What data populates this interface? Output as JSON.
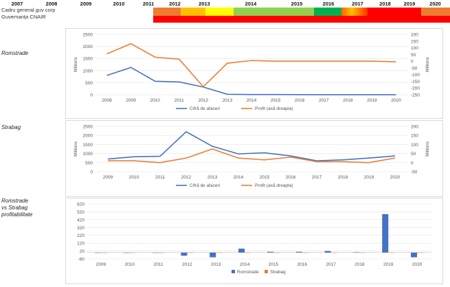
{
  "header": {
    "years": [
      "2007",
      "2008",
      "2009",
      "2010",
      "2011",
      "2012",
      "2013",
      "2014",
      "2015",
      "2016",
      "2017",
      "2018",
      "2019",
      "2020"
    ],
    "governance_labels": [
      "Cadru general guv corp",
      "Guvernanța CNAIR"
    ],
    "bands_top": [
      {
        "from": "2010",
        "to": "2010",
        "color": "#ed7d31"
      },
      {
        "from": "2011",
        "to": "2011",
        "color": "#ffc000"
      },
      {
        "from": "2012",
        "to": "2012",
        "color": "#ffff00"
      },
      {
        "from": "2013",
        "to": "2015",
        "color": "#92d050"
      },
      {
        "from": "2016",
        "to": "2016",
        "color": "#00b050"
      },
      {
        "from": "2017",
        "to": "2017",
        "color": "gradient"
      },
      {
        "from": "2018",
        "to": "2019",
        "color": "#ff0000"
      },
      {
        "from": "2020",
        "to": "2020",
        "color": "#ed7d31"
      }
    ],
    "band_bottom_color": "#ff0000",
    "band_top_default": "#ff0000"
  },
  "row_labels": {
    "romstrade": "Romstrade",
    "strabag": "Strabag",
    "comparison": [
      "Romstrade",
      "vs Strabag",
      "profitabilitate"
    ]
  },
  "chart_data": [
    {
      "type": "line",
      "x": [
        "2008",
        "2009",
        "2010",
        "2011",
        "2012",
        "2013",
        "2014",
        "2015",
        "2016",
        "2017",
        "2018",
        "2019",
        "2020"
      ],
      "ylim": [
        0,
        2500
      ],
      "yticks": [
        0,
        500,
        1000,
        1500,
        2000,
        2500
      ],
      "y2lim": [
        -250,
        200
      ],
      "y2ticks": [
        200,
        150,
        100,
        50,
        0,
        -50,
        -100,
        -150,
        -200,
        -250
      ],
      "ylabel": "Millions",
      "y2label": "Millions",
      "series": [
        {
          "name": "Cifră de afaceri",
          "axis": "left",
          "color": "#4472c4",
          "values": [
            800,
            1130,
            560,
            530,
            320,
            20,
            10,
            8,
            5,
            3,
            2,
            2,
            1
          ]
        },
        {
          "name": "Profit (axă dreapta)",
          "axis": "right",
          "color": "#ed7d31",
          "values": [
            55,
            130,
            30,
            15,
            -190,
            -15,
            5,
            0,
            0,
            0,
            0,
            0,
            -5
          ]
        }
      ]
    },
    {
      "type": "line",
      "x": [
        "2009",
        "2010",
        "2011",
        "2012",
        "2013",
        "2014",
        "2015",
        "2016",
        "2017",
        "2018",
        "2019",
        "2020"
      ],
      "ylim": [
        0,
        2500
      ],
      "yticks": [
        0,
        500,
        1000,
        1500,
        2000,
        2500
      ],
      "y2lim": [
        -50,
        200
      ],
      "y2ticks": [
        200,
        150,
        100,
        50,
        0,
        -50
      ],
      "ylabel": "Millions",
      "y2label": "Millions",
      "series": [
        {
          "name": "Cifră de afaceri",
          "axis": "left",
          "color": "#4472c4",
          "values": [
            700,
            820,
            850,
            2200,
            1400,
            980,
            1040,
            870,
            600,
            650,
            750,
            870
          ]
        },
        {
          "name": "Profit (axă dreapta)",
          "axis": "right",
          "color": "#ed7d31",
          "values": [
            10,
            10,
            0,
            25,
            75,
            25,
            15,
            30,
            5,
            5,
            0,
            25
          ]
        }
      ]
    },
    {
      "type": "bar",
      "categories": [
        "2009",
        "2010",
        "2011",
        "2012",
        "2013",
        "2014",
        "2015",
        "2016",
        "2017",
        "2018",
        "2019",
        "2020"
      ],
      "ylim": [
        -80,
        620
      ],
      "yticks": [
        620,
        520,
        420,
        320,
        220,
        120,
        20,
        -80
      ],
      "series": [
        {
          "name": "Romstrade",
          "color": "#4472c4",
          "values": [
            -3,
            0,
            0,
            -40,
            -60,
            50,
            10,
            10,
            20,
            5,
            490,
            -60
          ]
        },
        {
          "name": "Strabag",
          "color": "#ed7d31",
          "values": [
            0,
            1,
            0,
            1,
            2,
            2,
            1,
            1,
            1,
            1,
            1,
            1
          ]
        }
      ]
    }
  ]
}
